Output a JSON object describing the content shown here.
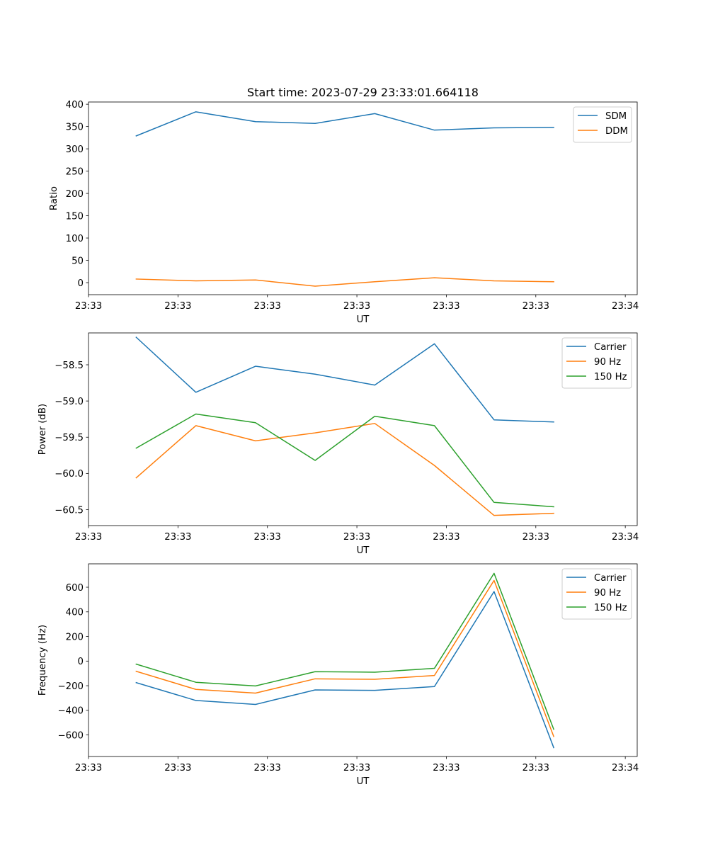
{
  "figure_title": "Start time: 2023-07-29 23:33:01.664118",
  "chart_data": [
    {
      "type": "line",
      "title": "Start time: 2023-07-29 23:33:01.664118",
      "xlabel": "UT",
      "ylabel": "Ratio",
      "x": [
        1,
        2,
        3,
        4,
        5,
        6,
        7,
        8
      ],
      "xlim": [
        0.2,
        9.4
      ],
      "x_ticks": [
        0.2,
        1.7,
        3.2,
        4.7,
        6.2,
        7.7,
        9.2
      ],
      "x_tick_labels": [
        "23:33",
        "23:33",
        "23:33",
        "23:33",
        "23:33",
        "23:33",
        "23:34"
      ],
      "ylim": [
        -27,
        405
      ],
      "y_ticks": [
        0,
        50,
        100,
        150,
        200,
        250,
        300,
        350,
        400
      ],
      "y_tick_labels": [
        "0",
        "50",
        "100",
        "150",
        "200",
        "250",
        "300",
        "350",
        "400"
      ],
      "legend_position": "top-right",
      "series": [
        {
          "name": "SDM",
          "color": "#1f77b4",
          "values": [
            329,
            383,
            361,
            357,
            379,
            342,
            347,
            348
          ]
        },
        {
          "name": "DDM",
          "color": "#ff7f0e",
          "values": [
            8,
            4,
            6,
            -8,
            2,
            11,
            4,
            2
          ]
        }
      ]
    },
    {
      "type": "line",
      "title": "",
      "xlabel": "UT",
      "ylabel": "Power (dB)",
      "x": [
        1,
        2,
        3,
        4,
        5,
        6,
        7,
        8
      ],
      "xlim": [
        0.2,
        9.4
      ],
      "x_ticks": [
        0.2,
        1.7,
        3.2,
        4.7,
        6.2,
        7.7,
        9.2
      ],
      "x_tick_labels": [
        "23:33",
        "23:33",
        "23:33",
        "23:33",
        "23:33",
        "23:33",
        "23:34"
      ],
      "ylim": [
        -60.72,
        -58.06
      ],
      "y_ticks": [
        -60.5,
        -60.0,
        -59.5,
        -59.0,
        -58.5
      ],
      "y_tick_labels": [
        "−60.5",
        "−60.0",
        "−59.5",
        "−59.0",
        "−58.5"
      ],
      "legend_position": "top-right",
      "series": [
        {
          "name": "Carrier",
          "color": "#1f77b4",
          "values": [
            -58.12,
            -58.88,
            -58.52,
            -58.63,
            -58.78,
            -58.21,
            -59.26,
            -59.29
          ]
        },
        {
          "name": "90 Hz",
          "color": "#ff7f0e",
          "values": [
            -60.06,
            -59.34,
            -59.55,
            -59.44,
            -59.31,
            -59.89,
            -60.58,
            -60.55
          ]
        },
        {
          "name": "150 Hz",
          "color": "#2ca02c",
          "values": [
            -59.65,
            -59.18,
            -59.3,
            -59.82,
            -59.21,
            -59.34,
            -60.4,
            -60.46
          ]
        }
      ]
    },
    {
      "type": "line",
      "title": "",
      "xlabel": "UT",
      "ylabel": "Frequency (Hz)",
      "x": [
        1,
        2,
        3,
        4,
        5,
        6,
        7,
        8
      ],
      "xlim": [
        0.2,
        9.4
      ],
      "x_ticks": [
        0.2,
        1.7,
        3.2,
        4.7,
        6.2,
        7.7,
        9.2
      ],
      "x_tick_labels": [
        "23:33",
        "23:33",
        "23:33",
        "23:33",
        "23:33",
        "23:33",
        "23:34"
      ],
      "ylim": [
        -775,
        790
      ],
      "y_ticks": [
        -600,
        -400,
        -200,
        0,
        200,
        400,
        600
      ],
      "y_tick_labels": [
        "−600",
        "−400",
        "−200",
        "0",
        "200",
        "400",
        "600"
      ],
      "legend_position": "top-right",
      "series": [
        {
          "name": "Carrier",
          "color": "#1f77b4",
          "values": [
            -175,
            -320,
            -352,
            -234,
            -238,
            -207,
            565,
            -703
          ]
        },
        {
          "name": "90 Hz",
          "color": "#ff7f0e",
          "values": [
            -83,
            -230,
            -260,
            -144,
            -148,
            -117,
            655,
            -612
          ]
        },
        {
          "name": "150 Hz",
          "color": "#2ca02c",
          "values": [
            -25,
            -172,
            -202,
            -86,
            -90,
            -59,
            713,
            -554
          ]
        }
      ]
    }
  ]
}
